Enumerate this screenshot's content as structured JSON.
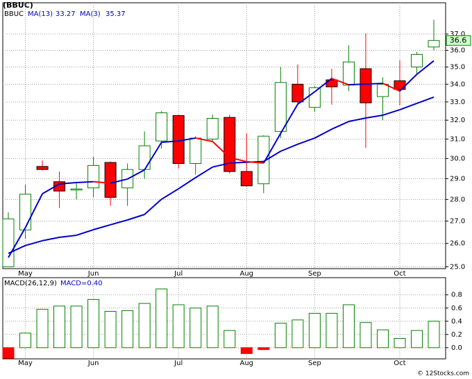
{
  "chart_data": [
    {
      "type": "candlestick",
      "title": "(BBUC)",
      "symbol": "BBUC",
      "log_scale": true,
      "grid": true,
      "categories": [
        null,
        "May",
        null,
        null,
        null,
        "Jun",
        null,
        null,
        null,
        null,
        "Jul",
        null,
        null,
        null,
        "Aug",
        null,
        null,
        null,
        "Sep",
        null,
        null,
        null,
        null,
        "Oct",
        null,
        null
      ],
      "open": [
        25.0,
        26.6,
        29.6,
        28.85,
        28.45,
        28.55,
        29.8,
        28.55,
        29.45,
        30.9,
        32.25,
        29.75,
        31.0,
        32.15,
        29.35,
        28.75,
        31.4,
        34.0,
        32.7,
        34.25,
        33.95,
        34.9,
        33.3,
        34.2,
        35.0,
        36.2
      ],
      "high": [
        27.4,
        28.7,
        29.9,
        29.35,
        28.85,
        30.1,
        29.85,
        29.75,
        31.4,
        32.5,
        32.3,
        31.15,
        32.3,
        32.3,
        31.3,
        31.2,
        35.0,
        35.15,
        33.9,
        34.9,
        36.3,
        37.05,
        34.4,
        35.4,
        35.9,
        37.9
      ],
      "low": [
        25.0,
        26.2,
        29.4,
        27.6,
        28.0,
        28.1,
        27.7,
        27.7,
        29.0,
        30.5,
        29.5,
        29.2,
        30.85,
        29.25,
        28.6,
        28.3,
        31.05,
        32.9,
        32.45,
        32.85,
        33.6,
        30.55,
        32.0,
        32.8,
        34.6,
        36.0
      ],
      "close": [
        27.1,
        28.25,
        29.45,
        28.4,
        28.5,
        29.65,
        28.1,
        29.45,
        30.65,
        32.4,
        29.75,
        31.05,
        32.1,
        29.35,
        28.65,
        31.15,
        34.1,
        33.0,
        33.8,
        33.85,
        35.3,
        32.95,
        34.0,
        33.7,
        35.75,
        36.6
      ],
      "up_color": "#008000",
      "down_color": "#ff0000",
      "lines": [
        {
          "name": "MA(13)",
          "color": "#0000cc",
          "values": [
            25.57,
            25.91,
            26.12,
            26.27,
            26.36,
            26.61,
            26.83,
            27.05,
            27.3,
            28.01,
            28.51,
            29.05,
            29.57,
            29.77,
            29.81,
            29.85,
            30.37,
            30.73,
            31.05,
            31.52,
            31.93,
            32.12,
            32.27,
            32.57,
            32.92,
            33.27
          ]
        },
        {
          "name": "MA(3)",
          "color": "#0000cc",
          "down_color": "#ff0000",
          "values": [
            25.39,
            26.7,
            28.27,
            28.74,
            28.81,
            28.85,
            28.78,
            28.98,
            29.43,
            30.83,
            30.9,
            31.05,
            30.87,
            30.05,
            29.84,
            29.77,
            31.3,
            32.87,
            33.57,
            34.33,
            33.97,
            34.01,
            34.05,
            33.61,
            34.57,
            35.37
          ]
        }
      ],
      "ylim": [
        24.92,
        39.0
      ],
      "yticks": [
        {
          "value": 25,
          "label": "25.0"
        },
        {
          "value": 26,
          "label": "26.0"
        },
        {
          "value": 27,
          "label": "27.0"
        },
        {
          "value": 28,
          "label": "28.0"
        },
        {
          "value": 29,
          "label": "29.0"
        },
        {
          "value": 30,
          "label": "30.0"
        },
        {
          "value": 31,
          "label": "31.0"
        },
        {
          "value": 32,
          "label": "32.0"
        },
        {
          "value": 33,
          "label": "33.0"
        },
        {
          "value": 34,
          "label": "34.0"
        },
        {
          "value": 35,
          "label": "35.0"
        },
        {
          "value": 36,
          "label": "36.0"
        },
        {
          "value": 37,
          "label": "37.0"
        }
      ]
    },
    {
      "type": "bar",
      "title": "MACD(26,12,9)",
      "current_label": "MACD=0.40",
      "color": "#008000",
      "negative_color": "#ff0000",
      "grid": true,
      "values": [
        -0.16,
        0.22,
        0.58,
        0.63,
        0.63,
        0.73,
        0.55,
        0.56,
        0.67,
        0.89,
        0.65,
        0.6,
        0.63,
        0.26,
        -0.09,
        -0.03,
        0.37,
        0.42,
        0.52,
        0.52,
        0.65,
        0.38,
        0.27,
        0.14,
        0.26,
        0.4
      ],
      "ylim": [
        -0.17,
        1.06
      ],
      "yticks": [
        {
          "value": 0,
          "label": "0.0"
        },
        0.2,
        0.4,
        0.6,
        0.8
      ]
    }
  ],
  "source": "© 12Stocks.com"
}
